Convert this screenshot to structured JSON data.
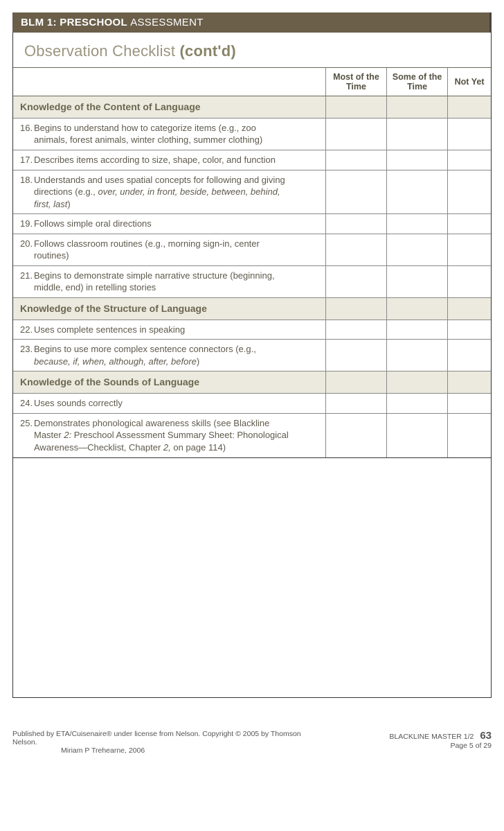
{
  "header": {
    "prefix": "BLM 1:",
    "bold": "PRESCHOOL",
    "suffix": "ASSESSMENT"
  },
  "title": {
    "a": "Observation",
    "b": "Checklist",
    "c": "(cont'd)"
  },
  "columns": {
    "c1": "Most of the Time",
    "c2": "Some of the Time",
    "c3": "Not Yet"
  },
  "sections": [
    {
      "heading": "Knowledge of the Content of Language",
      "rows": [
        {
          "n": "16.",
          "text": "Begins to understand how to categorize items (e.g., zoo animals, forest animals, winter clothing, summer clothing)"
        },
        {
          "n": "17.",
          "text": "Describes items according to size, shape, color, and function"
        },
        {
          "n": "18.",
          "text": "Understands and uses spatial concepts for following and giving directions (e.g., ",
          "italic": "over, under, in front, beside, between, behind, first, last",
          "after": ")"
        },
        {
          "n": "19.",
          "text": "Follows simple oral directions"
        },
        {
          "n": "20.",
          "text": "Follows classroom routines (e.g., morning sign-in, center routines)"
        },
        {
          "n": "21.",
          "text": "Begins to demonstrate simple narrative structure (beginning, middle, end) in retelling stories"
        }
      ]
    },
    {
      "heading": "Knowledge of the Structure of Language",
      "rows": [
        {
          "n": "22.",
          "text": "Uses complete sentences in speaking"
        },
        {
          "n": "23.",
          "text": "Begins to use more complex sentence connectors (e.g., ",
          "italic": "because, if, when, although, after, before",
          "after": ")"
        }
      ]
    },
    {
      "heading": "Knowledge of the Sounds of Language",
      "rows": [
        {
          "n": "24.",
          "text": "Uses sounds correctly"
        },
        {
          "n": "25.",
          "text": "Demonstrates phonological awareness skills (see Blackline Master ",
          "italic": "2:",
          "after": " Preschool Assessment Summary Sheet: Phonological Awareness—Checklist, Chapter ",
          "italic2": "2,",
          "after2": " on page 114)"
        }
      ]
    }
  ],
  "footer": {
    "pub": "Published by ETA/Cuisenaire® under license from Nelson. Copyright © 2005 by Thomson Nelson.",
    "author": "Miriam P Trehearne, 2006",
    "master": "BLACKLINE MASTER 1/2",
    "pageOf": "Page 5 of 29",
    "pageNum": "63"
  },
  "style": {
    "header_bg": "#6b5f4a",
    "section_bg": "#eceade",
    "text_color": "#5e5a4c",
    "border_color": "#888888"
  }
}
